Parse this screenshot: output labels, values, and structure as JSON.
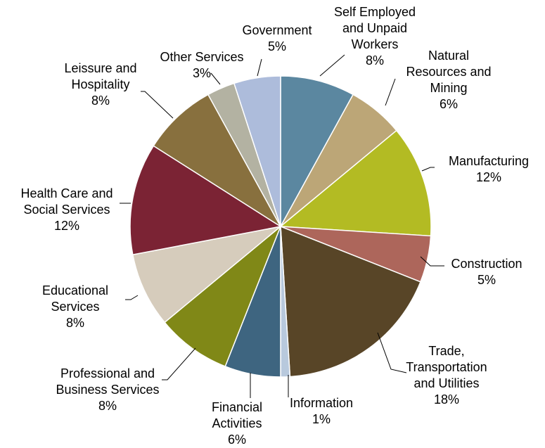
{
  "chart_data": {
    "type": "pie",
    "categories": [
      "Self Employed and Unpaid Workers",
      "Natural Resources and Mining",
      "Manufacturing",
      "Construction",
      "Trade, Transportation and Utilities",
      "Information",
      "Financial Activities",
      "Professional and Business Services",
      "Educational Services",
      "Health Care and Social Services",
      "Leissure and Hospitality",
      "Other Services",
      "Government"
    ],
    "values": [
      8,
      6,
      12,
      5,
      18,
      1,
      6,
      8,
      8,
      12,
      8,
      3,
      5
    ],
    "value_labels": [
      "8%",
      "6%",
      "12%",
      "5%",
      "18%",
      "1%",
      "6%",
      "8%",
      "8%",
      "12%",
      "8%",
      "3%",
      "5%"
    ],
    "colors": [
      "#5b87a0",
      "#bca677",
      "#b3bb23",
      "#ad665b",
      "#584527",
      "#b8c9dd",
      "#3e6580",
      "#808817",
      "#d6ccbc",
      "#7b2334",
      "#88703e",
      "#b3b2a2",
      "#adbcdb"
    ]
  }
}
